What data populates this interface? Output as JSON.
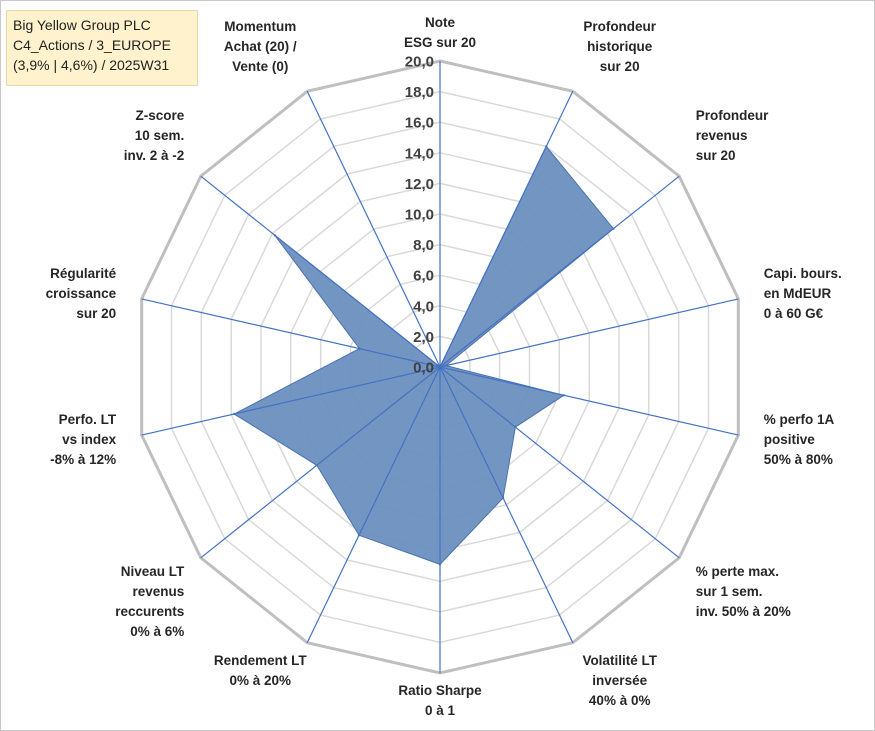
{
  "title_box": {
    "lines": [
      "Big Yellow Group PLC",
      "C4_Actions / 3_EUROPE",
      "(3,9% | 4,6%) / 2025W31"
    ],
    "background": "#fff2cc"
  },
  "chart_data": {
    "type": "radar",
    "rmin": 0,
    "rmax": 20,
    "tick_step": 2,
    "tick_labels": [
      "0,0",
      "2,0",
      "4,0",
      "6,0",
      "8,0",
      "10,0",
      "12,0",
      "14,0",
      "16,0",
      "18,0",
      "20,0"
    ],
    "grid": true,
    "fill_color": "#6b8fbf",
    "edge_color": "#4a72b0",
    "spoke_color": "#4472c4",
    "grid_color": "#d9d9d9",
    "outer_color": "#bfbfbf",
    "axes": [
      {
        "label": [
          "Note",
          "ESG sur 20"
        ],
        "value": 0
      },
      {
        "label": [
          "Profondeur",
          "historique",
          "sur 20"
        ],
        "value": 16.0
      },
      {
        "label": [
          "Profondeur",
          "revenus",
          "sur 20"
        ],
        "value": 14.5
      },
      {
        "label": [
          "Capi. bours.",
          "en MdEUR",
          "0 à 60 G€"
        ],
        "value": 0.4
      },
      {
        "label": [
          "% perfo 1A",
          "positive",
          "50% à 80%"
        ],
        "value": 8.3
      },
      {
        "label": [
          "% perte max.",
          "sur 1 sem.",
          "inv. 50% à 20%"
        ],
        "value": 6.3
      },
      {
        "label": [
          "Volatilité LT",
          "inversée",
          "40% à 0%"
        ],
        "value": 9.5
      },
      {
        "label": [
          "Ratio Sharpe",
          "0 à 1"
        ],
        "value": 12.9
      },
      {
        "label": [
          "Rendement LT",
          "0% à 20%"
        ],
        "value": 12.2
      },
      {
        "label": [
          "Niveau LT",
          "revenus",
          "reccurents",
          "0% à 6%"
        ],
        "value": 10.3
      },
      {
        "label": [
          "Perfo. LT",
          "vs index",
          "-8% à 12%"
        ],
        "value": 13.8
      },
      {
        "label": [
          "Régularité",
          "croissance",
          "sur 20"
        ],
        "value": 5.4
      },
      {
        "label": [
          "Z-score",
          "10 sem.",
          "inv. 2 à -2"
        ],
        "value": 13.8
      },
      {
        "label": [
          "Momentum",
          "Achat (20) /",
          "Vente (0)"
        ],
        "value": 0
      }
    ]
  }
}
